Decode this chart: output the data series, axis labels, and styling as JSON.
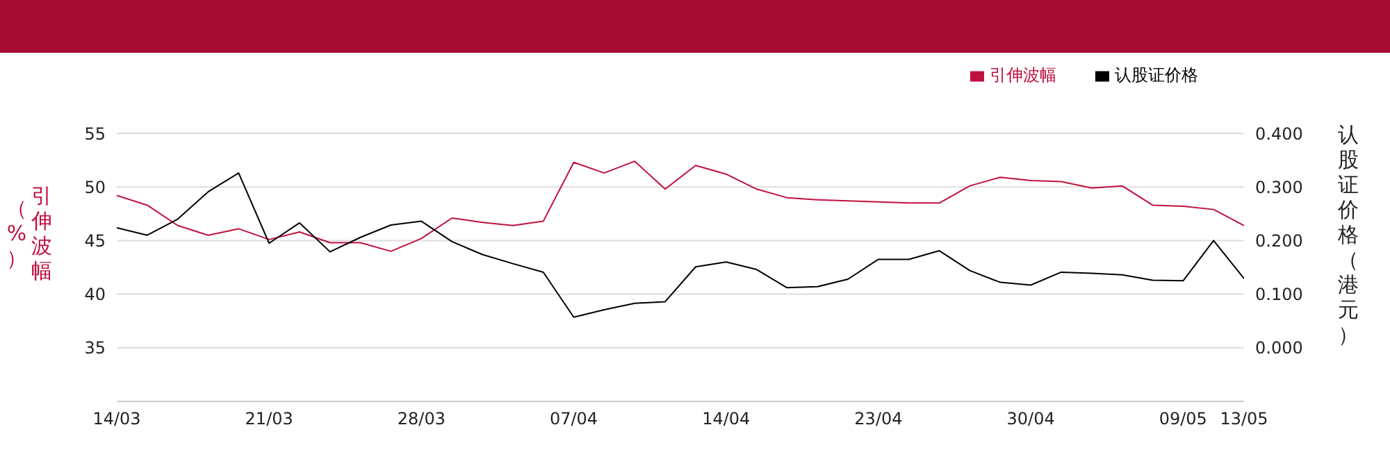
{
  "chart_data": {
    "type": "line",
    "categories": [
      "14/03",
      null,
      null,
      null,
      null,
      "21/03",
      null,
      null,
      null,
      null,
      "28/03",
      null,
      null,
      null,
      null,
      "07/04",
      null,
      null,
      null,
      null,
      "14/04",
      null,
      null,
      null,
      null,
      "23/04",
      null,
      null,
      null,
      null,
      "30/04",
      null,
      null,
      null,
      null,
      "09/05",
      null,
      "13/05"
    ],
    "series": [
      {
        "name": "引伸波幅",
        "color": "#c0103f",
        "values": [
          49.2,
          48.3,
          46.4,
          45.5,
          46.1,
          45.1,
          45.8,
          44.8,
          44.8,
          44.0,
          45.2,
          47.1,
          46.7,
          46.4,
          46.8,
          52.3,
          51.3,
          52.4,
          49.8,
          52.0,
          51.2,
          49.8,
          49.0,
          48.8,
          48.7,
          48.6,
          48.5,
          48.5,
          50.1,
          50.9,
          50.6,
          50.5,
          49.9,
          50.1,
          48.3,
          48.2,
          47.9,
          46.4
        ]
      },
      {
        "name": "认股证价格",
        "color": "#000000",
        "axis": "y2",
        "values": [
          0.224,
          0.21,
          0.24,
          0.291,
          0.326,
          0.195,
          0.233,
          0.179,
          0.206,
          0.229,
          0.236,
          0.198,
          0.174,
          0.157,
          0.141,
          0.057,
          0.071,
          0.083,
          0.086,
          0.151,
          0.16,
          0.146,
          0.112,
          0.114,
          0.128,
          0.165,
          0.165,
          0.181,
          0.144,
          0.122,
          0.117,
          0.141,
          0.139,
          0.136,
          0.126,
          0.125,
          0.2,
          0.129
        ]
      }
    ],
    "ylabel": "引伸波幅（%）",
    "y2label": "认股证价格（港元）",
    "ylim": [
      30,
      55
    ],
    "yticks": [
      35,
      40,
      45,
      50,
      55
    ],
    "y2lim": [
      -0.1,
      0.4
    ],
    "y2ticks": [
      {
        "value": 0,
        "label": "0.000"
      },
      {
        "value": 0.1,
        "label": "0.100"
      },
      {
        "value": 0.2,
        "label": "0.200"
      },
      {
        "value": 0.3,
        "label": "0.300"
      },
      {
        "value": 0.4,
        "label": "0.400"
      }
    ],
    "grid": "y",
    "legend": "top right",
    "marker": "none",
    "line_style": "solid"
  }
}
